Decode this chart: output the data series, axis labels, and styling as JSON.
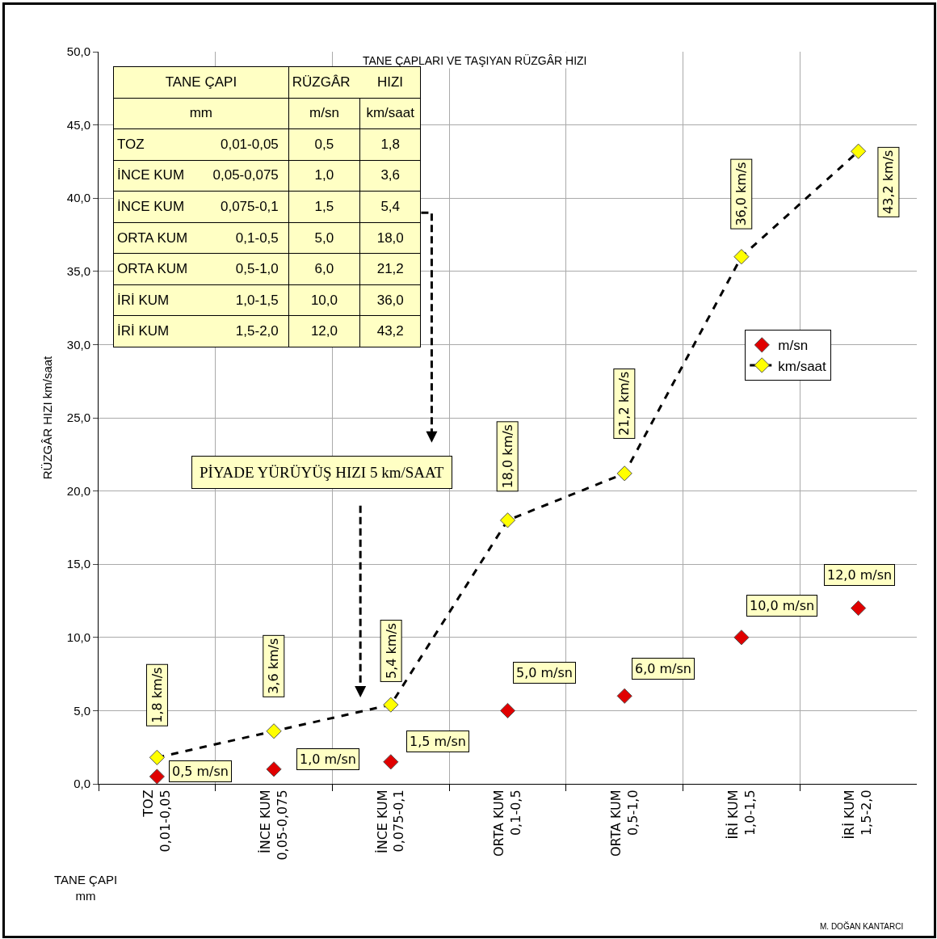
{
  "chart_data": {
    "type": "scatter",
    "title": "TANE ÇAPLARI VE TAŞIYAN RÜZGÂR HIZI",
    "ylabel": "RÜZGÂR HIZI km/saat",
    "categories": [
      "TOZ\n0,01-0,05",
      "İNCE KUM\n0,05-0,075",
      "İNCE KUM\n0,075-0,1",
      "ORTA KUM\n0,1-0,5",
      "ORTA KUM\n0,5-1,0",
      "İRİ KUM\n1,0-1,5",
      "İRİ KUM\n1,5-2,0"
    ],
    "series": [
      {
        "name": "m/sn",
        "color": "#e00000",
        "values": [
          0.5,
          1.0,
          1.5,
          5.0,
          6.0,
          10.0,
          12.0
        ],
        "value_labels": [
          "0,5 m/sn",
          "1,0 m/sn",
          "1,5 m/sn",
          "5,0 m/sn",
          "6,0 m/sn",
          "10,0 m/sn",
          "12,0 m/sn"
        ]
      },
      {
        "name": "km/saat",
        "type": "line",
        "color": "#ffff00",
        "values": [
          1.8,
          3.6,
          5.4,
          18.0,
          21.2,
          36.0,
          43.2
        ],
        "value_labels": [
          "1,8 km/s",
          "3,6 km/s",
          "5,4 km/s",
          "18,0 km/s",
          "21,2 km/s",
          "36,0 km/s",
          "43,2 km/s"
        ]
      }
    ],
    "ylim": [
      0,
      50
    ],
    "yticks": [
      {
        "value": 0,
        "label": "0,0"
      },
      {
        "value": 5,
        "label": "5,0"
      },
      {
        "value": 10,
        "label": "10,0"
      },
      {
        "value": 15,
        "label": "15,0"
      },
      {
        "value": 20,
        "label": "20,0"
      },
      {
        "value": 25,
        "label": "25,0"
      },
      {
        "value": 30,
        "label": "30,0"
      },
      {
        "value": 35,
        "label": "35,0"
      },
      {
        "value": 40,
        "label": "40,0"
      },
      {
        "value": 45,
        "label": "45,0"
      },
      {
        "value": 50,
        "label": "50,0"
      }
    ],
    "grid": true,
    "legend": "right",
    "marker": "diamond",
    "line_style": "dashed",
    "annotations": [
      "PİYADE YÜRÜYÜŞ HIZI 5 km/SAAT",
      "TANE ÇAPI\nmm",
      "M. DOĞAN KANTARCI",
      "TANE ÇAPI\nmm",
      "RÜZGÂR",
      "HIZI",
      "m/sn",
      "km/saat",
      "0,5",
      "1,8",
      "1,0",
      "3,6",
      "1,5",
      "5,4",
      "5,0",
      "18,0",
      "6,0",
      "21,2",
      "10,0",
      "36,0",
      "12,0",
      "43,2"
    ]
  }
}
